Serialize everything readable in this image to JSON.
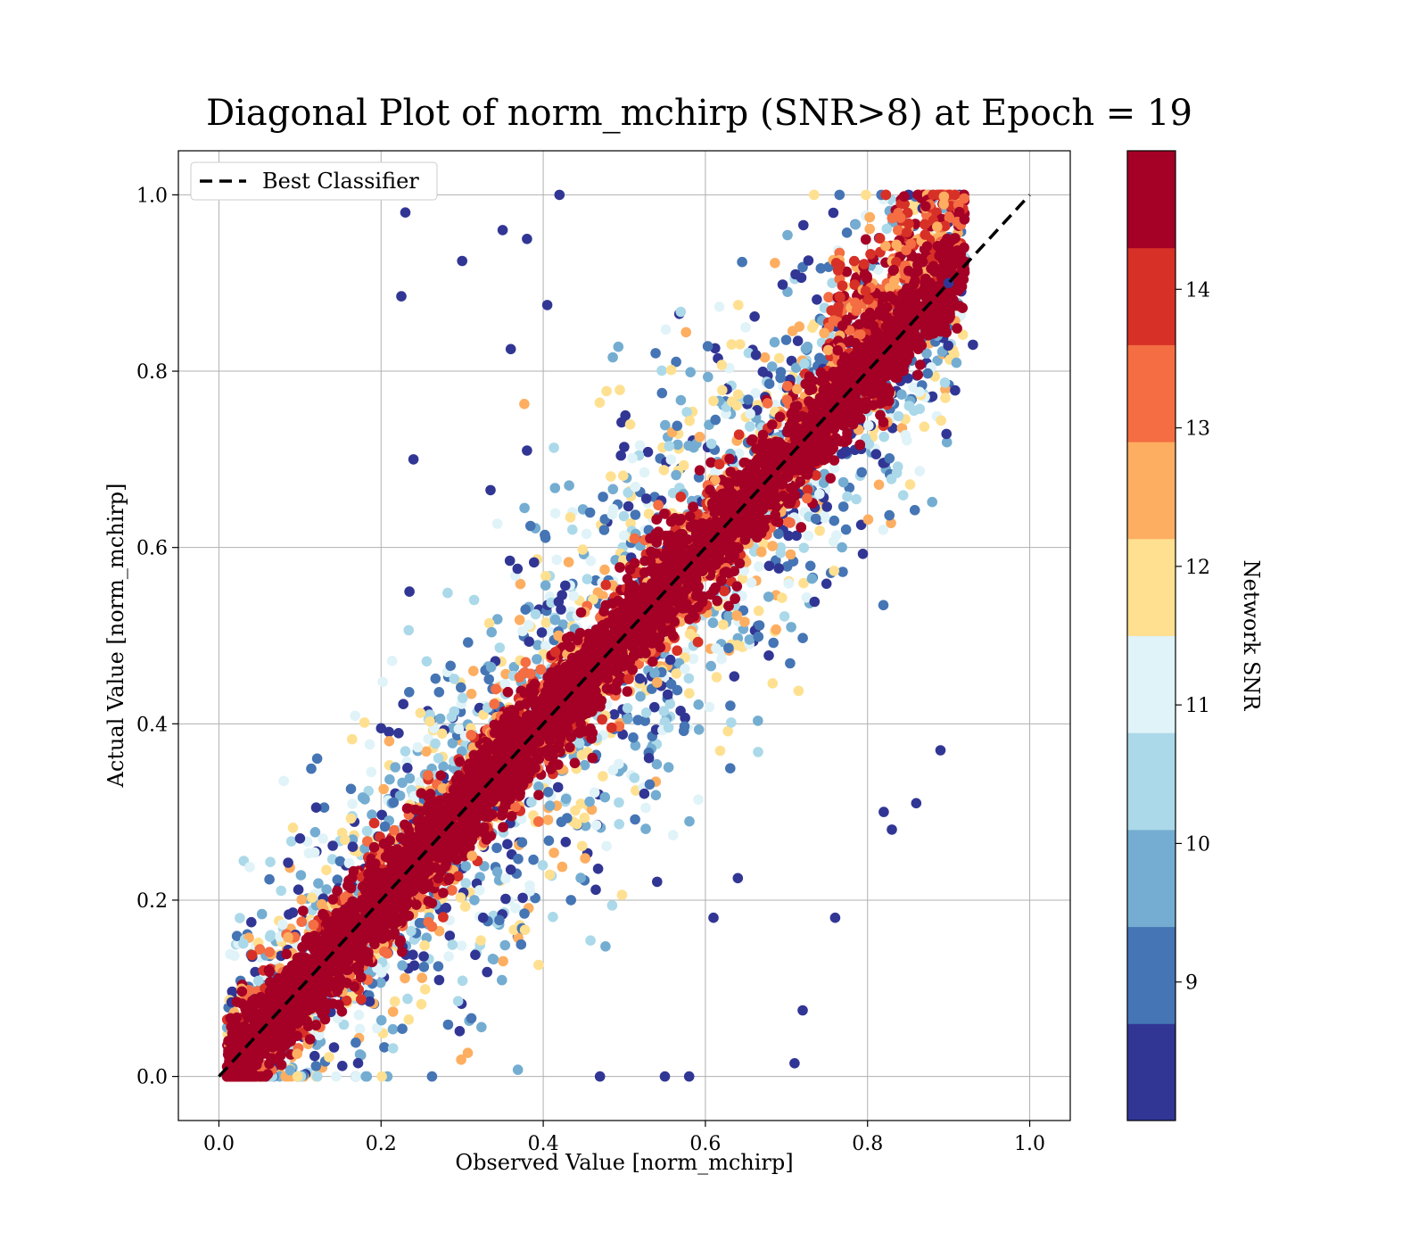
{
  "chart_data": {
    "type": "scatter",
    "title": "Diagonal Plot of norm_mchirp (SNR>8) at Epoch = 19",
    "xlabel": "Observed Value [norm_mchirp]",
    "ylabel": "Actual Value [norm_mchirp]",
    "xlim": [
      -0.05,
      1.05
    ],
    "ylim": [
      -0.05,
      1.05
    ],
    "x_ticks": [
      "0.0",
      "0.2",
      "0.4",
      "0.6",
      "0.8",
      "1.0"
    ],
    "y_ticks": [
      "0.0",
      "0.2",
      "0.4",
      "0.6",
      "0.8",
      "1.0"
    ],
    "x_tick_values": [
      0.0,
      0.2,
      0.4,
      0.6,
      0.8,
      1.0
    ],
    "y_tick_values": [
      0.0,
      0.2,
      0.4,
      0.6,
      0.8,
      1.0
    ],
    "grid": true,
    "legend": {
      "position": "top-left",
      "entries": [
        {
          "label": "Best Classifier",
          "style": "dashed",
          "color": "#000000"
        }
      ]
    },
    "reference_line": {
      "x": [
        0.0,
        1.0
      ],
      "y": [
        0.0,
        1.0
      ]
    },
    "colorbar": {
      "label": "Network SNR",
      "range": [
        8.0,
        15.0
      ],
      "tick_labels": [
        "9",
        "10",
        "11",
        "12",
        "13",
        "14"
      ],
      "tick_values": [
        9,
        10,
        11,
        12,
        13,
        14
      ],
      "colors": [
        "#313695",
        "#4575b4",
        "#74add1",
        "#abd9e9",
        "#e0f3f8",
        "#fee090",
        "#fdae61",
        "#f46d43",
        "#d73027",
        "#a50026"
      ]
    },
    "series": [
      {
        "description": "dense band of points around the diagonal",
        "snr_levels": "8-15 (high SNR near diagonal, low SNR scattered away)",
        "outliers": [
          [
            0.42,
            1.0
          ],
          [
            0.23,
            0.98
          ],
          [
            0.35,
            0.96
          ],
          [
            0.38,
            0.95
          ],
          [
            0.3,
            0.925
          ],
          [
            0.225,
            0.885
          ],
          [
            0.405,
            0.875
          ],
          [
            0.36,
            0.825
          ],
          [
            0.24,
            0.7
          ],
          [
            0.335,
            0.665
          ],
          [
            0.38,
            0.71
          ],
          [
            0.235,
            0.55
          ],
          [
            0.89,
            0.37
          ],
          [
            0.83,
            0.28
          ],
          [
            0.82,
            0.3
          ],
          [
            0.86,
            0.31
          ],
          [
            0.76,
            0.18
          ],
          [
            0.72,
            0.075
          ],
          [
            0.71,
            0.015
          ],
          [
            0.58,
            0.0
          ],
          [
            0.55,
            0.0
          ],
          [
            0.47,
            0.0
          ],
          [
            0.2,
            0.395
          ],
          [
            0.12,
            0.305
          ],
          [
            0.1,
            0.27
          ],
          [
            0.04,
            0.175
          ],
          [
            0.9,
            0.9
          ],
          [
            0.93,
            0.83
          ],
          [
            0.61,
            0.18
          ],
          [
            0.64,
            0.225
          ]
        ]
      }
    ]
  }
}
